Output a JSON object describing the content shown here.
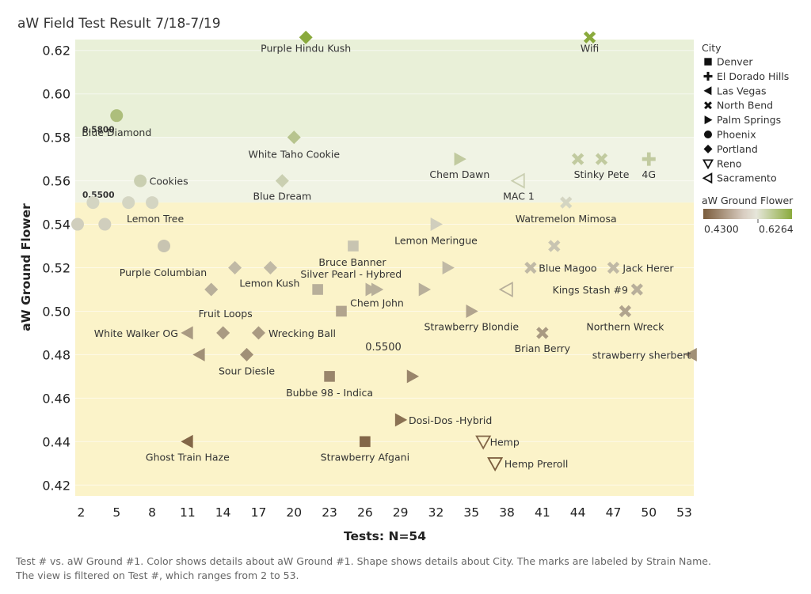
{
  "chart_data": {
    "type": "scatter",
    "title": "aW Field Test Result 7/18-7/19",
    "xlabel": "Tests: N=54",
    "ylabel": "aW Ground Flower",
    "xlim": [
      1.5,
      53.8
    ],
    "ylim": [
      0.415,
      0.625
    ],
    "x_ticks": [
      "2",
      "5",
      "8",
      "11",
      "14",
      "17",
      "20",
      "23",
      "26",
      "29",
      "32",
      "35",
      "38",
      "41",
      "44",
      "47",
      "50",
      "53"
    ],
    "x_tick_values": [
      2,
      5,
      8,
      11,
      14,
      17,
      20,
      23,
      26,
      29,
      32,
      35,
      38,
      41,
      44,
      47,
      50,
      53
    ],
    "y_ticks": [
      "0.42",
      "0.44",
      "0.46",
      "0.48",
      "0.50",
      "0.52",
      "0.54",
      "0.56",
      "0.58",
      "0.60",
      "0.62"
    ],
    "y_tick_values": [
      0.42,
      0.44,
      0.46,
      0.48,
      0.5,
      0.52,
      0.54,
      0.56,
      0.58,
      0.6,
      0.62
    ],
    "bands": [
      {
        "from": 0.58,
        "to": 0.625,
        "color": "#e9f0d8"
      },
      {
        "from": 0.55,
        "to": 0.58,
        "color": "#f0f3e4"
      },
      {
        "from": 0.415,
        "to": 0.55,
        "color": "#fbf3c9"
      }
    ],
    "reference_lines": [
      {
        "label": "0.5800",
        "value": 0.58
      },
      {
        "label": "0.5500",
        "value": 0.55
      }
    ],
    "center_annotation": "0.5500",
    "color_legend": {
      "title": "aW Ground Flower",
      "min_label": "0.4300",
      "max_label": "0.6264",
      "min": 0.43,
      "max": 0.6264
    },
    "shape_legend": {
      "title": "City",
      "items": [
        {
          "name": "Denver",
          "shape": "square"
        },
        {
          "name": "El Dorado Hills",
          "shape": "plus"
        },
        {
          "name": "Las Vegas",
          "shape": "tri-left"
        },
        {
          "name": "North Bend",
          "shape": "cross"
        },
        {
          "name": "Palm Springs",
          "shape": "tri-right"
        },
        {
          "name": "Phoenix",
          "shape": "circle"
        },
        {
          "name": "Portland",
          "shape": "diamond"
        },
        {
          "name": "Reno",
          "shape": "tri-down-open"
        },
        {
          "name": "Sacramento",
          "shape": "tri-left-open"
        }
      ]
    },
    "points": [
      {
        "x": 21,
        "y": 0.626,
        "shape": "diamond",
        "label": "Purple Hindu Kush"
      },
      {
        "x": 45,
        "y": 0.626,
        "shape": "cross",
        "label": "Wifi"
      },
      {
        "x": 5,
        "y": 0.59,
        "shape": "circle",
        "label": "Blue Diamond"
      },
      {
        "x": 20,
        "y": 0.58,
        "shape": "diamond",
        "label": "White Taho Cookie"
      },
      {
        "x": 34,
        "y": 0.57,
        "shape": "tri-right",
        "label": "Chem Dawn"
      },
      {
        "x": 44,
        "y": 0.57,
        "shape": "cross",
        "label": ""
      },
      {
        "x": 46,
        "y": 0.57,
        "shape": "cross",
        "label": "Stinky Pete"
      },
      {
        "x": 50,
        "y": 0.57,
        "shape": "plus",
        "label": "4G"
      },
      {
        "x": 7,
        "y": 0.56,
        "shape": "circle",
        "label": "Cookies"
      },
      {
        "x": 19,
        "y": 0.56,
        "shape": "diamond",
        "label": "Blue Dream"
      },
      {
        "x": 39,
        "y": 0.56,
        "shape": "tri-left-open",
        "label": "MAC 1"
      },
      {
        "x": 3,
        "y": 0.55,
        "shape": "circle",
        "label": ""
      },
      {
        "x": 6,
        "y": 0.55,
        "shape": "circle",
        "label": ""
      },
      {
        "x": 8,
        "y": 0.55,
        "shape": "circle",
        "label": "Lemon Tree"
      },
      {
        "x": 43,
        "y": 0.55,
        "shape": "cross",
        "label": "Watremelon Mimosa"
      },
      {
        "x": 1.7,
        "y": 0.54,
        "shape": "circle",
        "label": ""
      },
      {
        "x": 4,
        "y": 0.54,
        "shape": "circle",
        "label": ""
      },
      {
        "x": 32,
        "y": 0.54,
        "shape": "tri-right",
        "label": "Lemon Meringue"
      },
      {
        "x": 9,
        "y": 0.53,
        "shape": "circle",
        "label": "Purple Columbian"
      },
      {
        "x": 25,
        "y": 0.53,
        "shape": "square",
        "label": "Bruce Banner"
      },
      {
        "x": 42,
        "y": 0.53,
        "shape": "cross",
        "label": ""
      },
      {
        "x": 15,
        "y": 0.52,
        "shape": "diamond",
        "label": ""
      },
      {
        "x": 18,
        "y": 0.52,
        "shape": "diamond",
        "label": "Lemon Kush"
      },
      {
        "x": 33,
        "y": 0.52,
        "shape": "tri-right",
        "label": ""
      },
      {
        "x": 40,
        "y": 0.52,
        "shape": "cross",
        "label": "Blue Magoo"
      },
      {
        "x": 47,
        "y": 0.52,
        "shape": "cross",
        "label": "Jack Herer"
      },
      {
        "x": 13,
        "y": 0.51,
        "shape": "diamond",
        "label": ""
      },
      {
        "x": 22,
        "y": 0.51,
        "shape": "square",
        "label": ""
      },
      {
        "x": 26.5,
        "y": 0.51,
        "shape": "tri-right",
        "label": "Silver Pearl - Hybred"
      },
      {
        "x": 27,
        "y": 0.51,
        "shape": "tri-right",
        "label": ""
      },
      {
        "x": 31,
        "y": 0.51,
        "shape": "tri-right",
        "label": ""
      },
      {
        "x": 38,
        "y": 0.51,
        "shape": "tri-left-open",
        "label": ""
      },
      {
        "x": 49,
        "y": 0.51,
        "shape": "cross",
        "label": "Kings Stash #9"
      },
      {
        "x": 24,
        "y": 0.5,
        "shape": "square",
        "label": "Chem John"
      },
      {
        "x": 35,
        "y": 0.5,
        "shape": "tri-right",
        "label": "Strawberry Blondie"
      },
      {
        "x": 48,
        "y": 0.5,
        "shape": "cross",
        "label": "Northern Wreck"
      },
      {
        "x": 11,
        "y": 0.49,
        "shape": "tri-left",
        "label": "White Walker OG"
      },
      {
        "x": 14,
        "y": 0.49,
        "shape": "diamond",
        "label": "Fruit Loops"
      },
      {
        "x": 17,
        "y": 0.49,
        "shape": "diamond",
        "label": "Wrecking Ball"
      },
      {
        "x": 41,
        "y": 0.49,
        "shape": "cross",
        "label": "Brian Berry"
      },
      {
        "x": 12,
        "y": 0.48,
        "shape": "tri-left",
        "label": ""
      },
      {
        "x": 16,
        "y": 0.48,
        "shape": "diamond",
        "label": "Sour Diesle"
      },
      {
        "x": 53.6,
        "y": 0.48,
        "shape": "tri-left",
        "label": "strawberry sherbert"
      },
      {
        "x": 23,
        "y": 0.47,
        "shape": "square",
        "label": "Bubbe 98 - Indica"
      },
      {
        "x": 30,
        "y": 0.47,
        "shape": "tri-right",
        "label": ""
      },
      {
        "x": 29,
        "y": 0.45,
        "shape": "tri-right",
        "label": "Dosi-Dos -Hybrid"
      },
      {
        "x": 11,
        "y": 0.44,
        "shape": "tri-left",
        "label": "Ghost Train Haze"
      },
      {
        "x": 26,
        "y": 0.44,
        "shape": "square",
        "label": "Strawberry Afgani"
      },
      {
        "x": 36,
        "y": 0.44,
        "shape": "tri-down-open",
        "label": "Hemp"
      },
      {
        "x": 37,
        "y": 0.43,
        "shape": "tri-down-open",
        "label": "Hemp Preroll"
      }
    ]
  },
  "footer": {
    "line1": "Test # vs. aW Ground #1.  Color shows details about aW Ground #1.  Shape shows details about City.  The marks are labeled by Strain Name.",
    "line2": "The view is filtered on Test #, which ranges from 2 to 53."
  },
  "colors": {
    "low": "#7a5c3c",
    "mid": "#d6d6c6",
    "high": "#8aaa3c"
  }
}
